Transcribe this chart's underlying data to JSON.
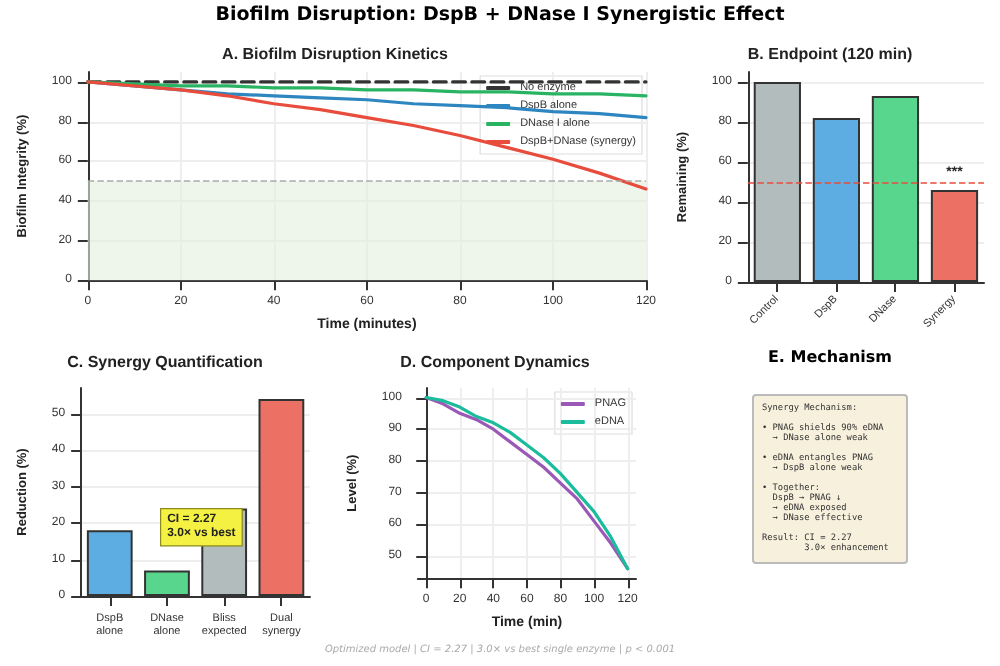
{
  "chart_data": [
    {
      "type": "other",
      "title": "Biofilm Disruption: DspB + DNase I Synergistic Effect",
      "annotations": [
        "Optimized model | CI = 2.27 | 3.0× vs best single enzyme | p < 0.001"
      ]
    },
    {
      "type": "line",
      "title": "A. Biofilm Disruption Kinetics",
      "xlabel": "Time (minutes)",
      "ylabel": "Biofilm Integrity (%)",
      "xlim": [
        0,
        120
      ],
      "xticks": [
        0,
        20,
        40,
        60,
        80,
        100,
        120
      ],
      "ylim": [
        0,
        105
      ],
      "yticks": [
        0,
        20,
        40,
        60,
        80,
        100
      ],
      "grid": true,
      "legend": "top right",
      "marker": "none",
      "x": [
        0,
        10,
        20,
        30,
        40,
        50,
        60,
        70,
        80,
        90,
        100,
        110,
        120
      ],
      "series": [
        {
          "name": "No enzyme",
          "color": "#333333",
          "line_style": "dashed",
          "values": [
            100,
            100,
            100,
            100,
            100,
            100,
            100,
            100,
            100,
            100,
            100,
            100,
            100
          ]
        },
        {
          "name": "DspB alone",
          "color": "#2e86c1",
          "values": [
            100,
            98,
            96,
            94,
            93,
            92,
            91,
            89,
            88,
            87,
            85,
            84,
            82
          ]
        },
        {
          "name": "DNase I alone",
          "color": "#28b463",
          "values": [
            100,
            99,
            98,
            98,
            97,
            97,
            96,
            96,
            95,
            95,
            94,
            94,
            93
          ]
        },
        {
          "name": "DspB+DNase (synergy)",
          "color": "#e74c3c",
          "values": [
            100,
            98,
            96,
            93,
            89,
            86,
            82,
            78,
            73,
            67,
            61,
            54,
            46
          ]
        }
      ],
      "bands": [
        {
          "axis": "y",
          "from": 0,
          "to": 50,
          "color": "#e3efdc"
        }
      ],
      "ref_lines": [
        {
          "axis": "y",
          "value": 50,
          "color": "#aaaaaa",
          "line_style": "dashed"
        }
      ]
    },
    {
      "type": "bar",
      "title": "B. Endpoint (120 min)",
      "ylabel": "Remaining (%)",
      "categories": [
        "Control",
        "DspB",
        "DNase",
        "Synergy"
      ],
      "values": [
        100,
        82,
        93,
        46
      ],
      "colors": [
        "#b2bcbc",
        "#5dade2",
        "#58d68d",
        "#ec7063"
      ],
      "ylim": [
        0,
        105
      ],
      "yticks": [
        0,
        20,
        40,
        60,
        80,
        100
      ],
      "grid": "y",
      "ref_lines": [
        {
          "axis": "y",
          "value": 50,
          "color": "#e74c3c",
          "line_style": "dashed"
        }
      ],
      "annotations": [
        {
          "text": "***",
          "x": "Synergy",
          "y": 46
        }
      ]
    },
    {
      "type": "bar",
      "title": "C. Synergy Quantification",
      "ylabel": "Reduction (%)",
      "categories": [
        "DspB\nalone",
        "DNase\nalone",
        "Bliss\nexpected",
        "Dual\nsynergy"
      ],
      "values": [
        18,
        7,
        24,
        54
      ],
      "colors": [
        "#5dade2",
        "#58d68d",
        "#b2bcbc",
        "#ec7063"
      ],
      "ylim": [
        0,
        57
      ],
      "yticks": [
        0,
        10,
        20,
        30,
        40,
        50
      ],
      "grid": "y",
      "annotations": [
        "CI = 2.27\n3.0× vs best"
      ]
    },
    {
      "type": "line",
      "title": "D. Component Dynamics",
      "xlabel": "Time (min)",
      "ylabel": "Level (%)",
      "xlim": [
        -5,
        125
      ],
      "xticks": [
        0,
        20,
        40,
        60,
        80,
        100,
        120
      ],
      "ylim": [
        43,
        103
      ],
      "yticks": [
        50,
        60,
        70,
        80,
        90,
        100
      ],
      "grid": true,
      "legend": "top right",
      "marker": "none",
      "x": [
        0,
        10,
        20,
        30,
        40,
        50,
        60,
        70,
        80,
        90,
        100,
        110,
        120
      ],
      "series": [
        {
          "name": "PNAG",
          "color": "#9b59b6",
          "values": [
            100,
            98,
            95,
            93,
            90,
            86,
            82,
            78,
            73,
            68,
            61,
            54,
            46
          ]
        },
        {
          "name": "eDNA",
          "color": "#1abc9c",
          "values": [
            100,
            99,
            97,
            94,
            92,
            89,
            85,
            81,
            76,
            70,
            64,
            56,
            46
          ]
        }
      ]
    },
    {
      "type": "other",
      "title": "E. Mechanism",
      "annotations": [
        "Synergy Mechanism:\n\n• PNAG shields 90% eDNA\n  → DNase alone weak\n\n• eDNA entangles PNAG\n  → DspB alone weak\n\n• Together:\n  DspB → PNAG ↓\n  → eDNA exposed\n  → DNase effective\n\nResult: CI = 2.27\n        3.0× enhancement"
      ]
    }
  ]
}
